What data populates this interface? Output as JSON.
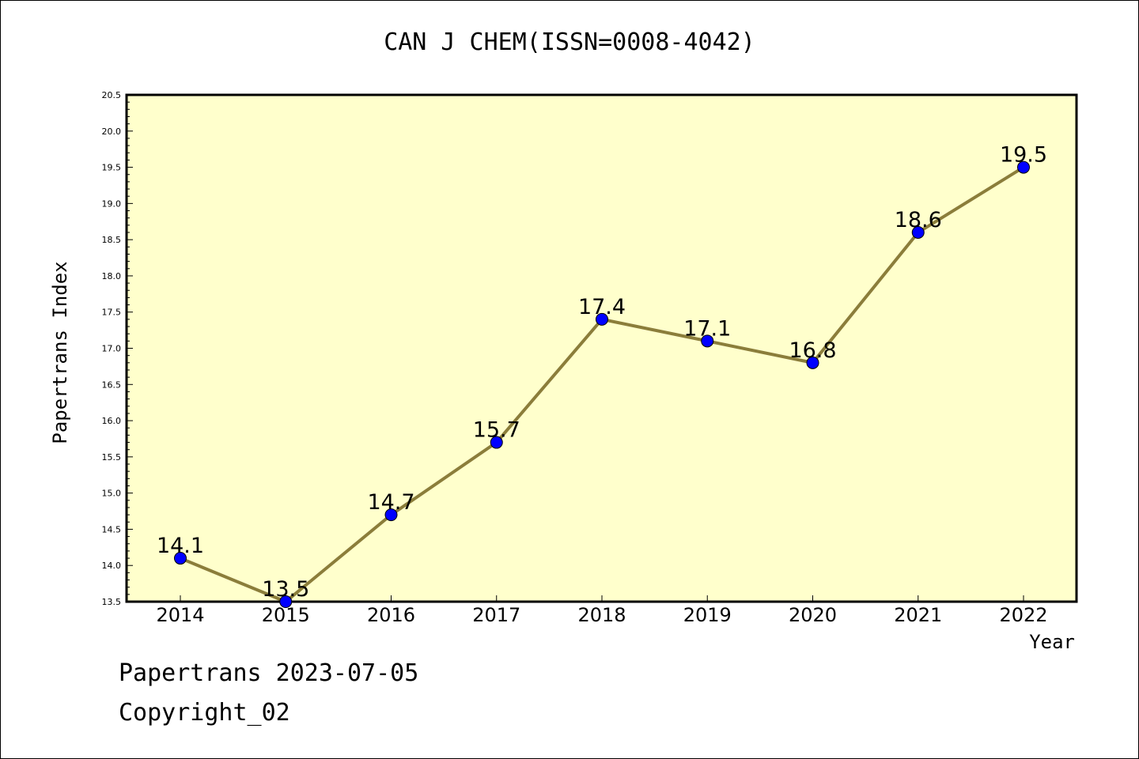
{
  "chart_data": {
    "type": "line",
    "title": "CAN J CHEM(ISSN=0008-4042)",
    "xlabel": "Year",
    "ylabel": "Papertrans Index",
    "categories": [
      "2014",
      "2015",
      "2016",
      "2017",
      "2018",
      "2019",
      "2020",
      "2021",
      "2022"
    ],
    "values": [
      14.1,
      13.5,
      14.7,
      15.7,
      17.4,
      17.1,
      16.8,
      18.6,
      19.5
    ],
    "data_labels": [
      "14.1",
      "13.5",
      "14.7",
      "15.7",
      "17.4",
      "17.1",
      "16.8",
      "18.6",
      "19.5"
    ],
    "ylim": [
      13.5,
      20.5
    ],
    "yticks": [
      "13.5",
      "14.0",
      "14.5",
      "15.0",
      "15.5",
      "16.0",
      "16.5",
      "17.0",
      "17.5",
      "18.0",
      "18.5",
      "19.0",
      "19.5",
      "20.0",
      "20.5"
    ],
    "grid": false,
    "colors": {
      "plot_background": "#ffffcc",
      "line": "#8b7d3a",
      "marker": "#0000ff"
    }
  },
  "footer": {
    "date_line": "Papertrans 2023-07-05",
    "copyright": "Copyright_02"
  }
}
